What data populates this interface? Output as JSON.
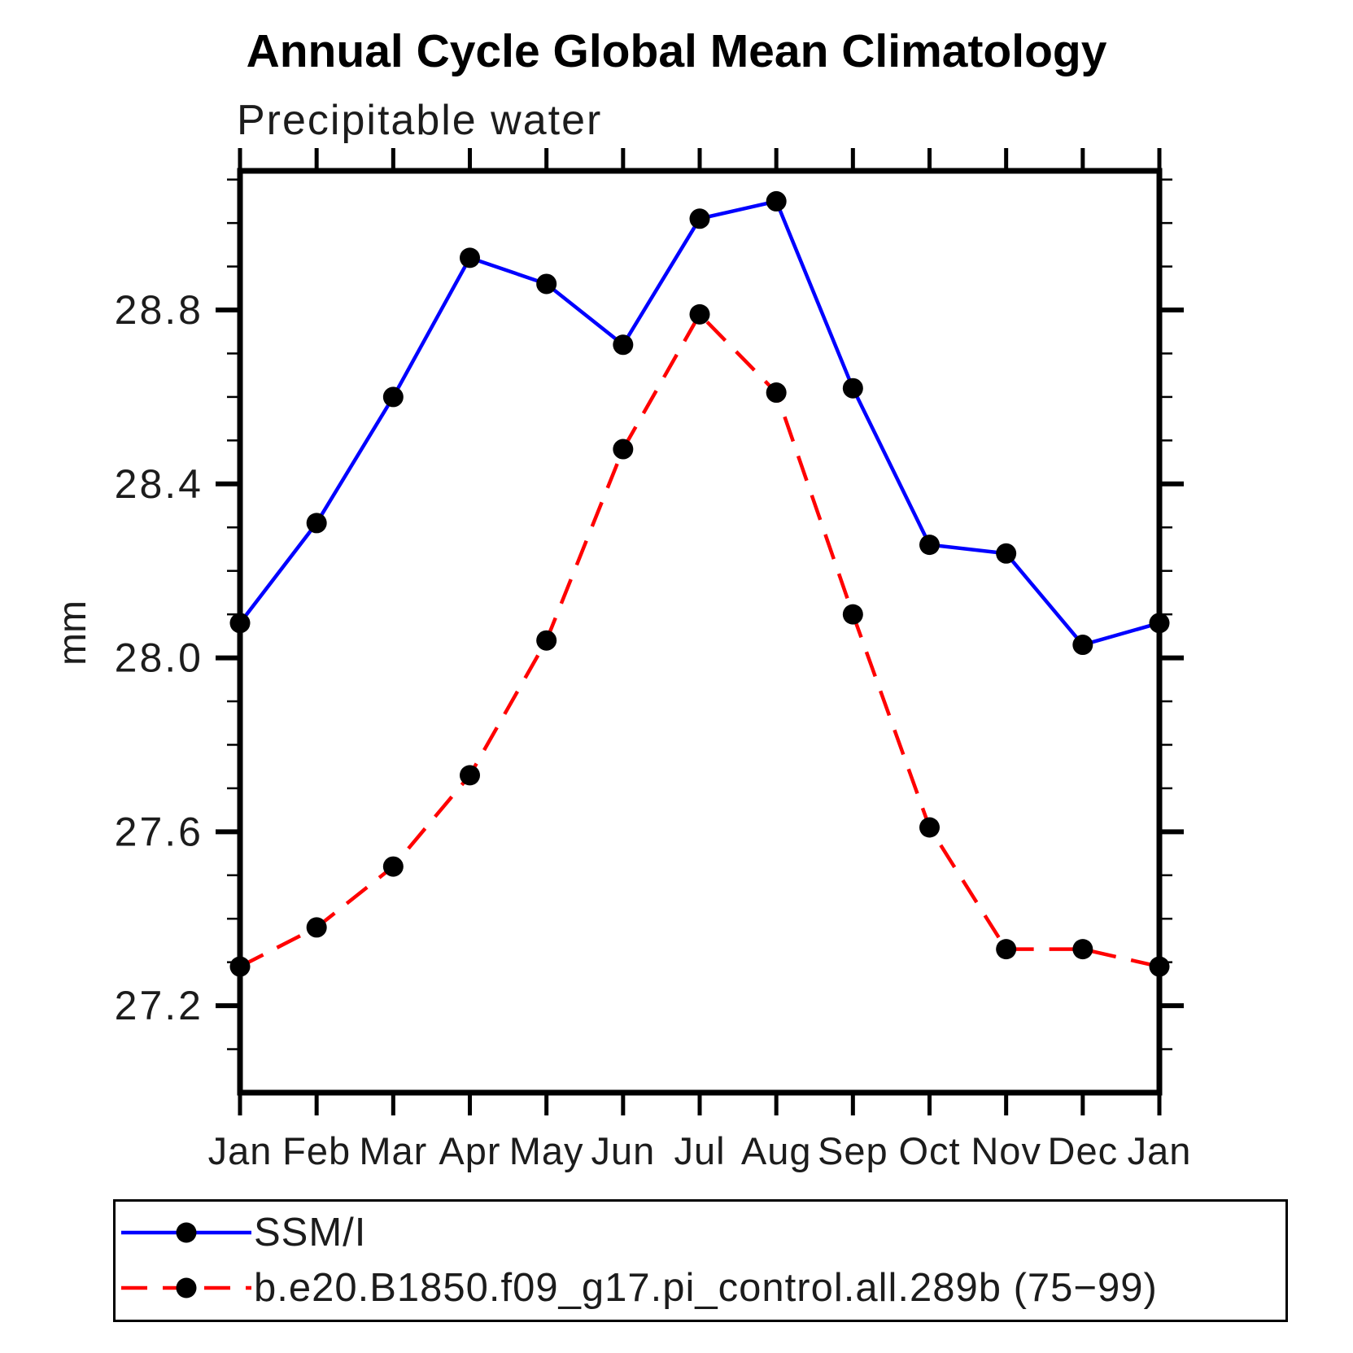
{
  "title": "Annual Cycle Global Mean Climatology",
  "subtitle": "Precipitable water",
  "ylabel": "mm",
  "chart_data": {
    "type": "line",
    "categories": [
      "Jan",
      "Feb",
      "Mar",
      "Apr",
      "May",
      "Jun",
      "Jul",
      "Aug",
      "Sep",
      "Oct",
      "Nov",
      "Dec",
      "Jan"
    ],
    "series": [
      {
        "name": "SSM/I",
        "color": "#0000ff",
        "line_style": "solid",
        "marker": "filled-circle",
        "marker_color": "#000000",
        "values": [
          28.08,
          28.31,
          28.6,
          28.92,
          28.86,
          28.72,
          29.01,
          29.05,
          28.62,
          28.26,
          28.24,
          28.03,
          28.08
        ]
      },
      {
        "name": "b.e20.B1850.f09_g17.pi_control.all.289b (75−99)",
        "color": "#ff0000",
        "line_style": "dashed",
        "marker": "filled-circle",
        "marker_color": "#000000",
        "values": [
          27.29,
          27.38,
          27.52,
          27.73,
          28.04,
          28.48,
          28.79,
          28.61,
          28.1,
          27.61,
          27.33,
          27.33,
          27.29
        ]
      }
    ],
    "xlabel": "",
    "ylabel": "mm",
    "ylim": [
      27.0,
      29.12
    ],
    "yticks_major": [
      27.2,
      27.6,
      28.0,
      28.4,
      28.8
    ],
    "ytick_labels": [
      "27.2",
      "27.6",
      "28.0",
      "28.4",
      "28.8"
    ],
    "ytick_minor_step": 0.1,
    "grid": false,
    "legend_position": "bottom",
    "axis_color": "#000000"
  }
}
